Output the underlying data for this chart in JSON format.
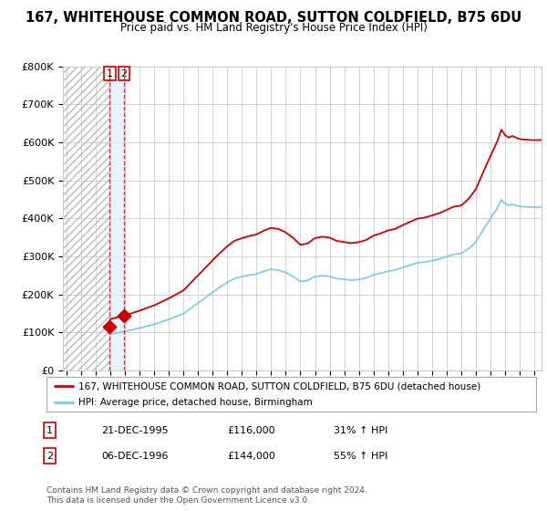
{
  "title": "167, WHITEHOUSE COMMON ROAD, SUTTON COLDFIELD, B75 6DU",
  "subtitle": "Price paid vs. HM Land Registry's House Price Index (HPI)",
  "sale1_date": 1995.96,
  "sale1_price": 116000,
  "sale2_date": 1996.92,
  "sale2_price": 144000,
  "hpi_color": "#7ec8e3",
  "price_color": "#cc0000",
  "hpi_line_color": "#aad4f0",
  "legend_entry1": "167, WHITEHOUSE COMMON ROAD, SUTTON COLDFIELD, B75 6DU (detached house)",
  "legend_entry2": "HPI: Average price, detached house, Birmingham",
  "table_row1": [
    "1",
    "21-DEC-1995",
    "£116,000",
    "31% ↑ HPI"
  ],
  "table_row2": [
    "2",
    "06-DEC-1996",
    "£144,000",
    "55% ↑ HPI"
  ],
  "footnote": "Contains HM Land Registry data © Crown copyright and database right 2024.\nThis data is licensed under the Open Government Licence v3.0.",
  "ylim": [
    0,
    800000
  ],
  "xlim_start": 1992.75,
  "xlim_end": 2025.5,
  "background_color": "#ffffff",
  "grid_color": "#cccccc"
}
